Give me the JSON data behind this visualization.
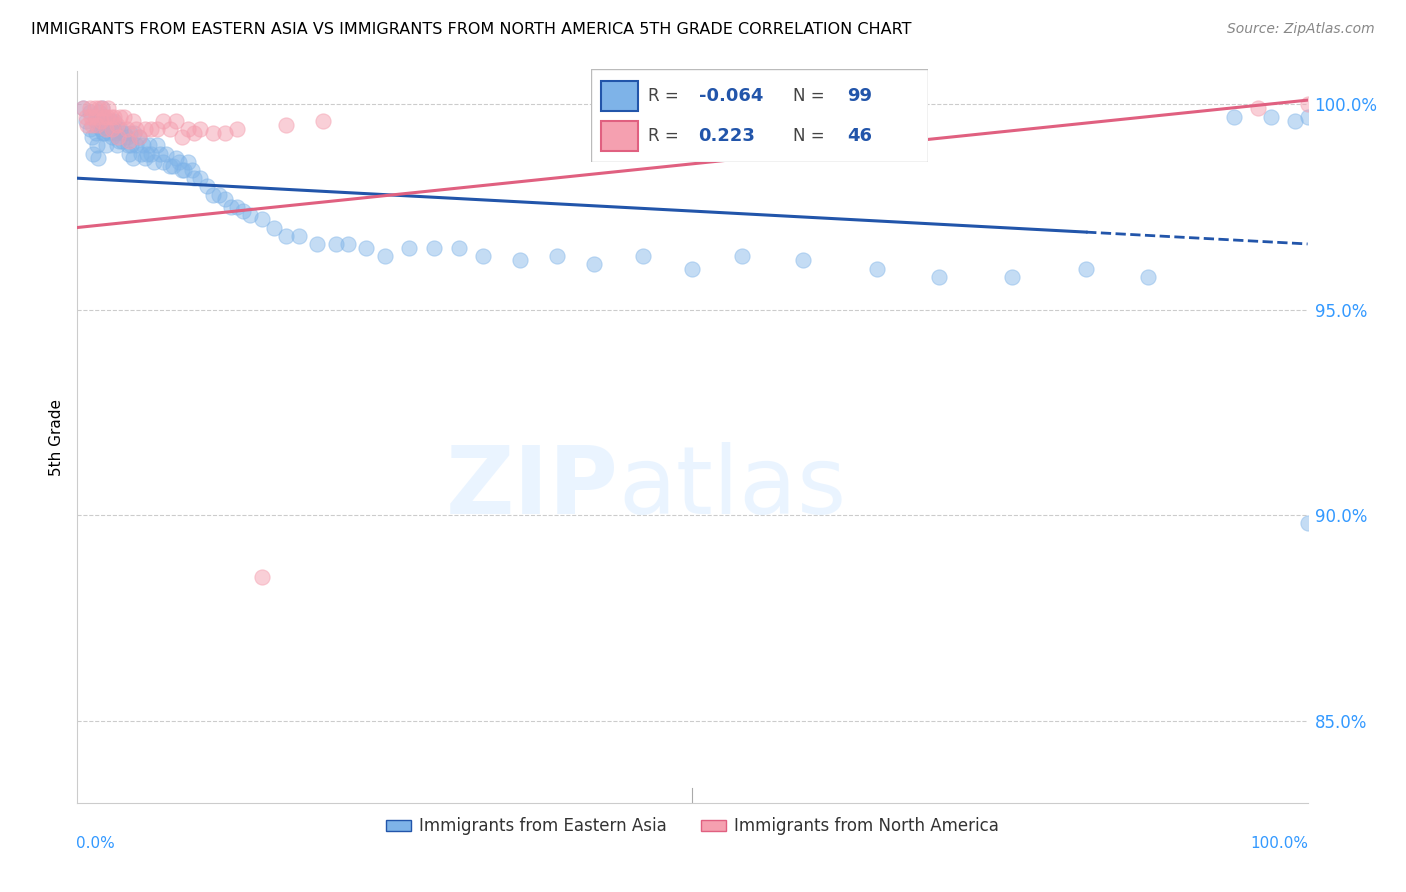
{
  "title": "IMMIGRANTS FROM EASTERN ASIA VS IMMIGRANTS FROM NORTH AMERICA 5TH GRADE CORRELATION CHART",
  "source": "Source: ZipAtlas.com",
  "ylabel": "5th Grade",
  "xlim": [
    0.0,
    1.0
  ],
  "ylim": [
    0.83,
    1.008
  ],
  "yticks": [
    0.85,
    0.9,
    0.95,
    1.0
  ],
  "ytick_labels": [
    "85.0%",
    "90.0%",
    "95.0%",
    "100.0%"
  ],
  "legend_blue_label": "Immigrants from Eastern Asia",
  "legend_pink_label": "Immigrants from North America",
  "R_blue": -0.064,
  "N_blue": 99,
  "R_pink": 0.223,
  "N_pink": 46,
  "blue_color": "#7EB3E8",
  "pink_color": "#F5A0B0",
  "blue_line_color": "#2255AA",
  "pink_line_color": "#E06080",
  "watermark_zip": "ZIP",
  "watermark_atlas": "atlas",
  "blue_trend_x0": 0.0,
  "blue_trend_y0": 0.982,
  "blue_trend_x1": 1.0,
  "blue_trend_y1": 0.966,
  "pink_trend_x0": 0.0,
  "pink_trend_y0": 0.97,
  "pink_trend_x1": 1.0,
  "pink_trend_y1": 1.001,
  "blue_x": [
    0.005,
    0.007,
    0.01,
    0.01,
    0.012,
    0.013,
    0.015,
    0.015,
    0.016,
    0.017,
    0.018,
    0.019,
    0.02,
    0.02,
    0.021,
    0.022,
    0.022,
    0.023,
    0.025,
    0.026,
    0.027,
    0.028,
    0.029,
    0.03,
    0.031,
    0.032,
    0.033,
    0.034,
    0.035,
    0.036,
    0.038,
    0.04,
    0.041,
    0.042,
    0.043,
    0.044,
    0.045,
    0.046,
    0.048,
    0.05,
    0.052,
    0.053,
    0.055,
    0.057,
    0.058,
    0.06,
    0.062,
    0.065,
    0.067,
    0.07,
    0.072,
    0.075,
    0.078,
    0.08,
    0.083,
    0.085,
    0.087,
    0.09,
    0.093,
    0.095,
    0.1,
    0.105,
    0.11,
    0.115,
    0.12,
    0.125,
    0.13,
    0.135,
    0.14,
    0.15,
    0.16,
    0.17,
    0.18,
    0.195,
    0.21,
    0.22,
    0.235,
    0.25,
    0.27,
    0.29,
    0.31,
    0.33,
    0.36,
    0.39,
    0.42,
    0.46,
    0.5,
    0.54,
    0.59,
    0.65,
    0.7,
    0.76,
    0.82,
    0.87,
    0.94,
    0.97,
    0.99,
    1.0,
    1.0
  ],
  "blue_y": [
    0.999,
    0.996,
    0.998,
    0.994,
    0.992,
    0.988,
    0.996,
    0.993,
    0.99,
    0.987,
    0.998,
    0.994,
    0.999,
    0.995,
    0.993,
    0.997,
    0.993,
    0.99,
    0.995,
    0.993,
    0.996,
    0.992,
    0.994,
    0.996,
    0.993,
    0.99,
    0.994,
    0.991,
    0.994,
    0.991,
    0.993,
    0.992,
    0.99,
    0.988,
    0.993,
    0.99,
    0.987,
    0.993,
    0.99,
    0.992,
    0.988,
    0.99,
    0.987,
    0.988,
    0.99,
    0.988,
    0.986,
    0.99,
    0.988,
    0.986,
    0.988,
    0.985,
    0.985,
    0.987,
    0.986,
    0.984,
    0.984,
    0.986,
    0.984,
    0.982,
    0.982,
    0.98,
    0.978,
    0.978,
    0.977,
    0.975,
    0.975,
    0.974,
    0.973,
    0.972,
    0.97,
    0.968,
    0.968,
    0.966,
    0.966,
    0.966,
    0.965,
    0.963,
    0.965,
    0.965,
    0.965,
    0.963,
    0.962,
    0.963,
    0.961,
    0.963,
    0.96,
    0.963,
    0.962,
    0.96,
    0.958,
    0.958,
    0.96,
    0.958,
    0.997,
    0.997,
    0.996,
    0.997,
    0.898
  ],
  "pink_x": [
    0.005,
    0.007,
    0.008,
    0.01,
    0.011,
    0.012,
    0.014,
    0.015,
    0.016,
    0.018,
    0.019,
    0.02,
    0.022,
    0.023,
    0.024,
    0.025,
    0.027,
    0.028,
    0.03,
    0.032,
    0.033,
    0.035,
    0.038,
    0.04,
    0.042,
    0.045,
    0.048,
    0.05,
    0.055,
    0.06,
    0.065,
    0.07,
    0.075,
    0.08,
    0.085,
    0.09,
    0.095,
    0.1,
    0.11,
    0.12,
    0.13,
    0.15,
    0.17,
    0.2,
    0.96,
    1.0
  ],
  "pink_y": [
    0.999,
    0.997,
    0.995,
    0.999,
    0.997,
    0.995,
    0.999,
    0.997,
    0.995,
    0.999,
    0.996,
    0.999,
    0.997,
    0.994,
    0.997,
    0.999,
    0.997,
    0.994,
    0.997,
    0.995,
    0.992,
    0.997,
    0.997,
    0.994,
    0.991,
    0.996,
    0.994,
    0.992,
    0.994,
    0.994,
    0.994,
    0.996,
    0.994,
    0.996,
    0.992,
    0.994,
    0.993,
    0.994,
    0.993,
    0.993,
    0.994,
    0.885,
    0.995,
    0.996,
    0.999,
    1.0
  ]
}
